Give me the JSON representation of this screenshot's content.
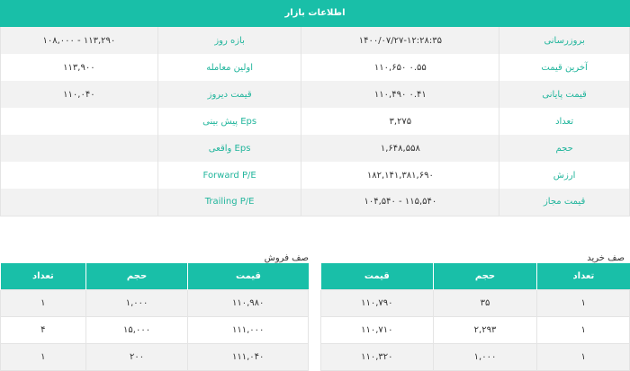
{
  "header": {
    "title": "اطلاعات بازار"
  },
  "info_rows": [
    {
      "label1": "بروزرسانی",
      "value1": "۱۴۰۰/۰۷/۲۷-۱۲:۲۸:۳۵",
      "label2": "بازه روز",
      "value2": "۱۱۳,۲۹۰ - ۱۰۸,۰۰۰"
    },
    {
      "label1": "آخرین قیمت",
      "value1": "۰.۵۵ ۱۱۰,۶۵۰",
      "label2": "اولین معامله",
      "value2": "۱۱۳,۹۰۰"
    },
    {
      "label1": "قیمت پایانی",
      "value1": "۰.۴۱ ۱۱۰,۴۹۰",
      "label2": "قیمت دیروز",
      "value2": "۱۱۰,۰۴۰"
    },
    {
      "label1": "تعداد",
      "value1": "۳,۲۷۵",
      "label2": "Eps پیش بینی",
      "value2": ""
    },
    {
      "label1": "حجم",
      "value1": "۱,۶۴۸,۵۵۸",
      "label2": "Eps واقعی",
      "value2": ""
    },
    {
      "label1": "ارزش",
      "value1": "۱۸۲,۱۴۱,۳۸۱,۶۹۰",
      "label2": "Forward P/E",
      "value2": ""
    },
    {
      "label1": "قیمت مجاز",
      "value1": "۱۱۵,۵۴۰ - ۱۰۴,۵۴۰",
      "label2": "Trailing P/E",
      "value2": ""
    }
  ],
  "buy_queue": {
    "title": "صف خرید",
    "columns": [
      "تعداد",
      "حجم",
      "قیمت"
    ],
    "rows": [
      [
        "۱",
        "۳۵",
        "۱۱۰,۷۹۰"
      ],
      [
        "۱",
        "۲,۲۹۳",
        "۱۱۰,۷۱۰"
      ],
      [
        "۱",
        "۱,۰۰۰",
        "۱۱۰,۳۲۰"
      ]
    ]
  },
  "sell_queue": {
    "title": "صف فروش",
    "columns": [
      "قیمت",
      "حجم",
      "تعداد"
    ],
    "rows": [
      [
        "۱۱۰,۹۸۰",
        "۱,۰۰۰",
        "۱"
      ],
      [
        "۱۱۱,۰۰۰",
        "۱۵,۰۰۰",
        "۴"
      ],
      [
        "۱۱۱,۰۴۰",
        "۲۰۰",
        "۱"
      ]
    ]
  },
  "colors": {
    "accent": "#19bfa8",
    "label_text": "#21b59c",
    "stripe": "#f2f2f2"
  }
}
